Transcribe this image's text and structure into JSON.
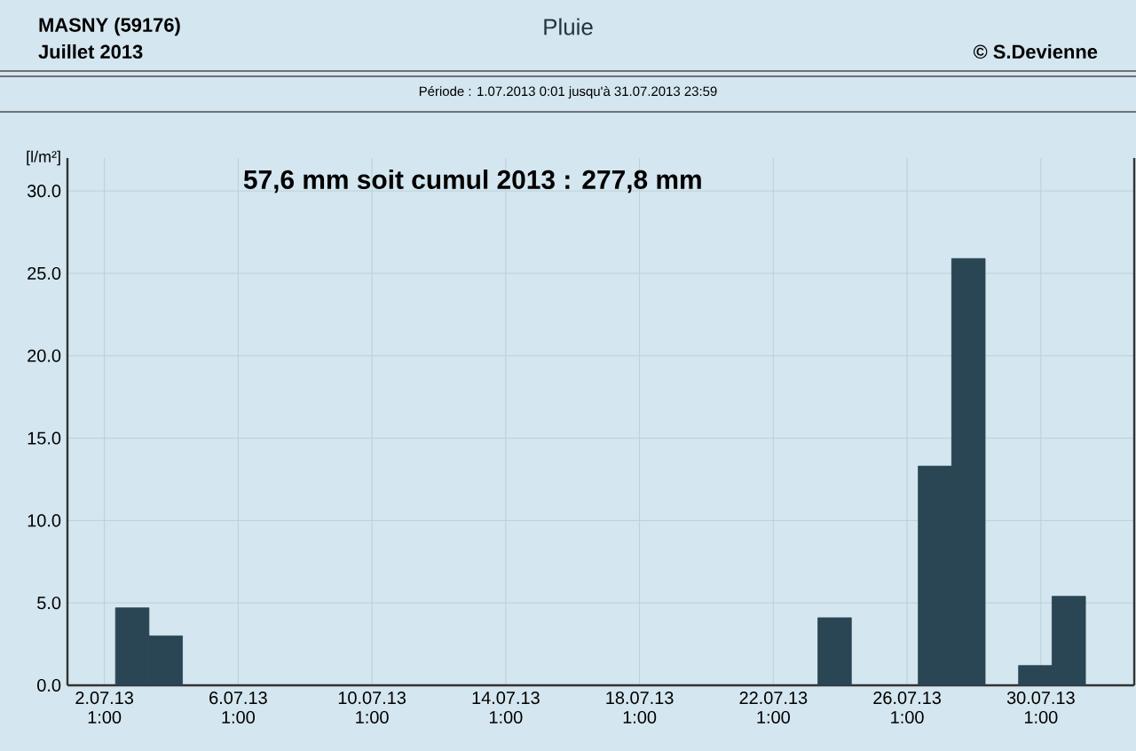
{
  "chart_data": {
    "type": "bar",
    "title": "Pluie",
    "subtitle": "Période : 1.07.2013 0:01 jusqu'à 31.07.2013 23:59",
    "ylabel": "[l/m²]",
    "annotations": [
      "MASNY (59176)",
      "Juillet 2013",
      "© S.Devienne",
      "57,6 mm soit cumul 2013 : 277,8 mm"
    ],
    "x": [
      "2013-07-02T21:00",
      "2013-07-03T21:00",
      "2013-07-23T21:00",
      "2013-07-26T21:00",
      "2013-07-27T21:00",
      "2013-07-29T21:00",
      "2013-07-30T21:00"
    ],
    "values": [
      4.7,
      3.0,
      4.1,
      13.3,
      25.9,
      1.2,
      5.4
    ],
    "color": "#2a4553",
    "xlim": [
      "2013-06-30T22:30",
      "2013-08-01T20:00"
    ],
    "ylim": [
      0,
      32
    ],
    "xticks": [
      {
        "value": "2013-07-02T01:00",
        "label": "2.07.13 1:00"
      },
      {
        "value": "2013-07-06T01:00",
        "label": "6.07.13 1:00"
      },
      {
        "value": "2013-07-10T01:00",
        "label": "10.07.13 1:00"
      },
      {
        "value": "2013-07-14T01:00",
        "label": "14.07.13 1:00"
      },
      {
        "value": "2013-07-18T01:00",
        "label": "18.07.13 1:00"
      },
      {
        "value": "2013-07-22T01:00",
        "label": "22.07.13 1:00"
      },
      {
        "value": "2013-07-26T01:00",
        "label": "26.07.13 1:00"
      },
      {
        "value": "2013-07-30T01:00",
        "label": "30.07.13 1:00"
      }
    ],
    "yticks": [
      {
        "value": 0,
        "label": "0.0"
      },
      {
        "value": 5,
        "label": "5.0"
      },
      {
        "value": 10,
        "label": "10.0"
      },
      {
        "value": 15,
        "label": "15.0"
      },
      {
        "value": 20,
        "label": "20.0"
      },
      {
        "value": 25,
        "label": "25.0"
      },
      {
        "value": 30,
        "label": "30.0"
      }
    ],
    "grid": true
  }
}
